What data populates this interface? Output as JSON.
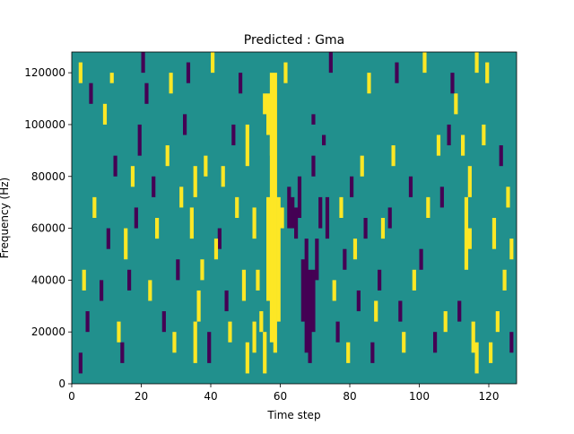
{
  "chart_data": {
    "type": "heatmap",
    "title": "Predicted : Gma",
    "xlabel": "Time step",
    "ylabel": "Frequency (Hz)",
    "xlim": [
      0,
      128
    ],
    "ylim": [
      0,
      128000
    ],
    "x_ticks": [
      0,
      20,
      40,
      60,
      80,
      100,
      120
    ],
    "y_ticks": [
      0,
      20000,
      40000,
      60000,
      80000,
      100000,
      120000
    ],
    "x_tick_labels": [
      "0",
      "20",
      "40",
      "60",
      "80",
      "100",
      "120"
    ],
    "y_tick_labels": [
      "0",
      "20000",
      "40000",
      "60000",
      "80000",
      "100000",
      "120000"
    ],
    "grid": false,
    "background_value": 0,
    "colors": {
      "background": "#21908d",
      "high": "#fde725",
      "low": "#440154"
    },
    "freq_bin_hz": 4000,
    "cells": [
      [
        57,
        4,
        20,
        1
      ],
      [
        58,
        3,
        21,
        1
      ],
      [
        59,
        6,
        12,
        1
      ],
      [
        56,
        8,
        10,
        1
      ],
      [
        55,
        1,
        4,
        1
      ],
      [
        57,
        22,
        8,
        1
      ],
      [
        58,
        24,
        6,
        1
      ],
      [
        56,
        24,
        4,
        1
      ],
      [
        60,
        15,
        2,
        1
      ],
      [
        67,
        3,
        11,
        0
      ],
      [
        68,
        2,
        9,
        0
      ],
      [
        66,
        6,
        6,
        0
      ],
      [
        69,
        5,
        6,
        0
      ],
      [
        65,
        16,
        4,
        0
      ],
      [
        62,
        15,
        4,
        0
      ],
      [
        63,
        15,
        3,
        0
      ],
      [
        64,
        14,
        3,
        0
      ],
      [
        70,
        10,
        4,
        0
      ],
      [
        73,
        14,
        4,
        0
      ],
      [
        71,
        15,
        3,
        0
      ],
      [
        69,
        20,
        2,
        0
      ],
      [
        69,
        25,
        1,
        0
      ],
      [
        72,
        23,
        1,
        0
      ],
      [
        113,
        11,
        5,
        1
      ],
      [
        114,
        13,
        2,
        1
      ],
      [
        113,
        16,
        2,
        1
      ],
      [
        115,
        3,
        3,
        1
      ],
      [
        112,
        22,
        2,
        1
      ],
      [
        114,
        18,
        3,
        1
      ],
      [
        116,
        1,
        3,
        1
      ],
      [
        50,
        1,
        3,
        1
      ],
      [
        52,
        3,
        3,
        1
      ],
      [
        54,
        5,
        2,
        1
      ],
      [
        49,
        8,
        3,
        1
      ],
      [
        53,
        9,
        2,
        1
      ],
      [
        35,
        2,
        4,
        1
      ],
      [
        36,
        6,
        3,
        1
      ],
      [
        37,
        10,
        2,
        1
      ],
      [
        34,
        14,
        3,
        1
      ],
      [
        35,
        18,
        3,
        1
      ],
      [
        38,
        20,
        2,
        1
      ],
      [
        52,
        14,
        3,
        1
      ],
      [
        50,
        21,
        4,
        1
      ],
      [
        55,
        26,
        2,
        1
      ],
      [
        120,
        2,
        2,
        1
      ],
      [
        122,
        5,
        2,
        1
      ],
      [
        124,
        9,
        2,
        1
      ],
      [
        126,
        12,
        2,
        1
      ],
      [
        110,
        26,
        2,
        1
      ],
      [
        116,
        30,
        3,
        1
      ],
      [
        118,
        23,
        2,
        1
      ],
      [
        121,
        13,
        3,
        1
      ],
      [
        2,
        1,
        2,
        0
      ],
      [
        4,
        5,
        2,
        0
      ],
      [
        8,
        8,
        2,
        0
      ],
      [
        10,
        13,
        2,
        0
      ],
      [
        12,
        20,
        2,
        0
      ],
      [
        14,
        2,
        2,
        0
      ],
      [
        16,
        9,
        2,
        0
      ],
      [
        18,
        15,
        2,
        0
      ],
      [
        19,
        22,
        3,
        0
      ],
      [
        21,
        27,
        2,
        0
      ],
      [
        23,
        18,
        2,
        0
      ],
      [
        26,
        5,
        2,
        0
      ],
      [
        30,
        10,
        2,
        0
      ],
      [
        32,
        24,
        2,
        0
      ],
      [
        39,
        2,
        3,
        0
      ],
      [
        42,
        13,
        2,
        0
      ],
      [
        44,
        7,
        2,
        0
      ],
      [
        46,
        23,
        2,
        0
      ],
      [
        76,
        4,
        2,
        0
      ],
      [
        78,
        11,
        2,
        0
      ],
      [
        80,
        18,
        2,
        0
      ],
      [
        82,
        7,
        2,
        0
      ],
      [
        84,
        14,
        2,
        0
      ],
      [
        86,
        2,
        2,
        0
      ],
      [
        88,
        9,
        2,
        0
      ],
      [
        91,
        15,
        2,
        0
      ],
      [
        94,
        6,
        2,
        0
      ],
      [
        97,
        18,
        2,
        0
      ],
      [
        100,
        11,
        2,
        0
      ],
      [
        104,
        3,
        2,
        0
      ],
      [
        106,
        17,
        2,
        0
      ],
      [
        108,
        23,
        2,
        0
      ],
      [
        111,
        6,
        2,
        0
      ],
      [
        123,
        21,
        2,
        0
      ],
      [
        126,
        3,
        2,
        0
      ],
      [
        3,
        9,
        2,
        1
      ],
      [
        6,
        16,
        2,
        1
      ],
      [
        9,
        25,
        2,
        1
      ],
      [
        13,
        4,
        2,
        1
      ],
      [
        15,
        12,
        3,
        1
      ],
      [
        17,
        19,
        2,
        1
      ],
      [
        22,
        8,
        2,
        1
      ],
      [
        24,
        14,
        2,
        1
      ],
      [
        27,
        21,
        2,
        1
      ],
      [
        29,
        3,
        2,
        1
      ],
      [
        31,
        17,
        2,
        1
      ],
      [
        41,
        12,
        2,
        1
      ],
      [
        43,
        19,
        2,
        1
      ],
      [
        45,
        4,
        2,
        1
      ],
      [
        47,
        16,
        2,
        1
      ],
      [
        75,
        8,
        2,
        1
      ],
      [
        77,
        16,
        2,
        1
      ],
      [
        79,
        2,
        2,
        1
      ],
      [
        81,
        12,
        2,
        1
      ],
      [
        83,
        20,
        2,
        1
      ],
      [
        87,
        6,
        2,
        1
      ],
      [
        89,
        14,
        2,
        1
      ],
      [
        92,
        21,
        2,
        1
      ],
      [
        95,
        3,
        2,
        1
      ],
      [
        98,
        9,
        2,
        1
      ],
      [
        102,
        16,
        2,
        1
      ],
      [
        105,
        22,
        2,
        1
      ],
      [
        107,
        5,
        2,
        1
      ],
      [
        125,
        17,
        2,
        1
      ],
      [
        2,
        29,
        2,
        1
      ],
      [
        5,
        27,
        2,
        0
      ],
      [
        11,
        29,
        1,
        1
      ],
      [
        20,
        30,
        2,
        0
      ],
      [
        28,
        28,
        2,
        1
      ],
      [
        33,
        29,
        2,
        0
      ],
      [
        40,
        30,
        2,
        1
      ],
      [
        48,
        28,
        2,
        0
      ],
      [
        61,
        29,
        2,
        1
      ],
      [
        74,
        30,
        2,
        0
      ],
      [
        85,
        28,
        2,
        1
      ],
      [
        93,
        29,
        2,
        0
      ],
      [
        101,
        30,
        2,
        1
      ],
      [
        109,
        28,
        2,
        0
      ],
      [
        119,
        29,
        2,
        1
      ]
    ]
  }
}
